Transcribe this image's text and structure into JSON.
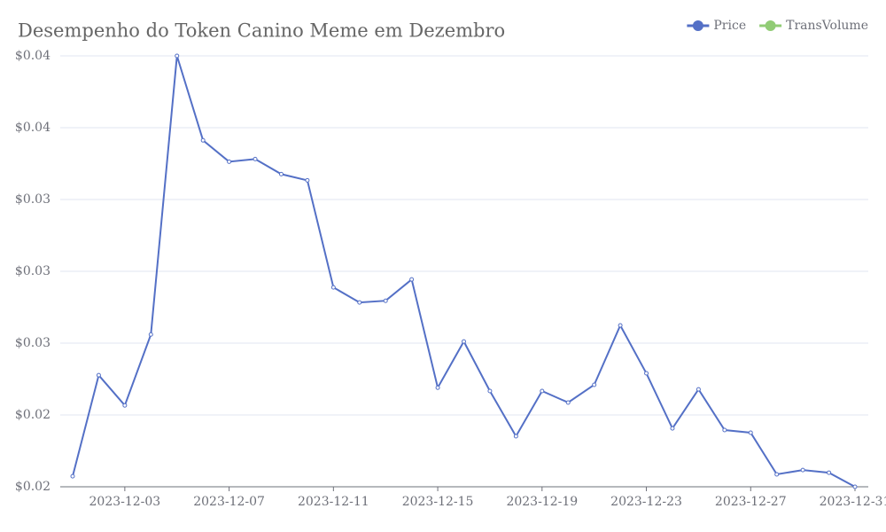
{
  "chart_data": {
    "type": "line",
    "title": "Desempenho do Token Canino Meme em Dezembro",
    "x": [
      "2023-12-01",
      "2023-12-02",
      "2023-12-03",
      "2023-12-04",
      "2023-12-05",
      "2023-12-06",
      "2023-12-07",
      "2023-12-08",
      "2023-12-09",
      "2023-12-10",
      "2023-12-11",
      "2023-12-12",
      "2023-12-13",
      "2023-12-14",
      "2023-12-15",
      "2023-12-16",
      "2023-12-17",
      "2023-12-18",
      "2023-12-19",
      "2023-12-20",
      "2023-12-21",
      "2023-12-22",
      "2023-12-23",
      "2023-12-24",
      "2023-12-25",
      "2023-12-26",
      "2023-12-27",
      "2023-12-28",
      "2023-12-29",
      "2023-12-30",
      "2023-12-31"
    ],
    "series": [
      {
        "name": "Price",
        "color": "#5470c6",
        "values": [
          0.02044,
          0.02466,
          0.0234,
          0.02636,
          0.038,
          0.03447,
          0.03358,
          0.03369,
          0.03306,
          0.0328,
          0.02833,
          0.0277,
          0.02777,
          0.02866,
          0.02414,
          0.02607,
          0.024,
          0.02211,
          0.024,
          0.02352,
          0.02426,
          0.02674,
          0.02474,
          0.02244,
          0.02407,
          0.02237,
          0.02226,
          0.02052,
          0.0207,
          0.02059,
          0.02
        ]
      },
      {
        "name": "TransVolume",
        "color": "#91cc75",
        "values": [
          null,
          null,
          null,
          null,
          null,
          null,
          null,
          null,
          null,
          null,
          null,
          null,
          null,
          null,
          null,
          null,
          null,
          null,
          null,
          null,
          null,
          null,
          null,
          null,
          null,
          null,
          null,
          null,
          null,
          null,
          null
        ]
      }
    ],
    "xlim": [
      "2023-12-01",
      "2023-12-31"
    ],
    "xticks": [
      "2023-12-03",
      "2023-12-07",
      "2023-12-11",
      "2023-12-15",
      "2023-12-19",
      "2023-12-23",
      "2023-12-27",
      "2023-12-31"
    ],
    "ylim": [
      0.02,
      0.038
    ],
    "yticks": [
      {
        "value": 0.02,
        "label": "$0.02"
      },
      {
        "value": 0.023,
        "label": "$0.02"
      },
      {
        "value": 0.026,
        "label": "$0.03"
      },
      {
        "value": 0.029,
        "label": "$0.03"
      },
      {
        "value": 0.032,
        "label": "$0.03"
      },
      {
        "value": 0.035,
        "label": "$0.04"
      },
      {
        "value": 0.038,
        "label": "$0.04"
      }
    ],
    "grid": true,
    "legend": "top-right"
  }
}
